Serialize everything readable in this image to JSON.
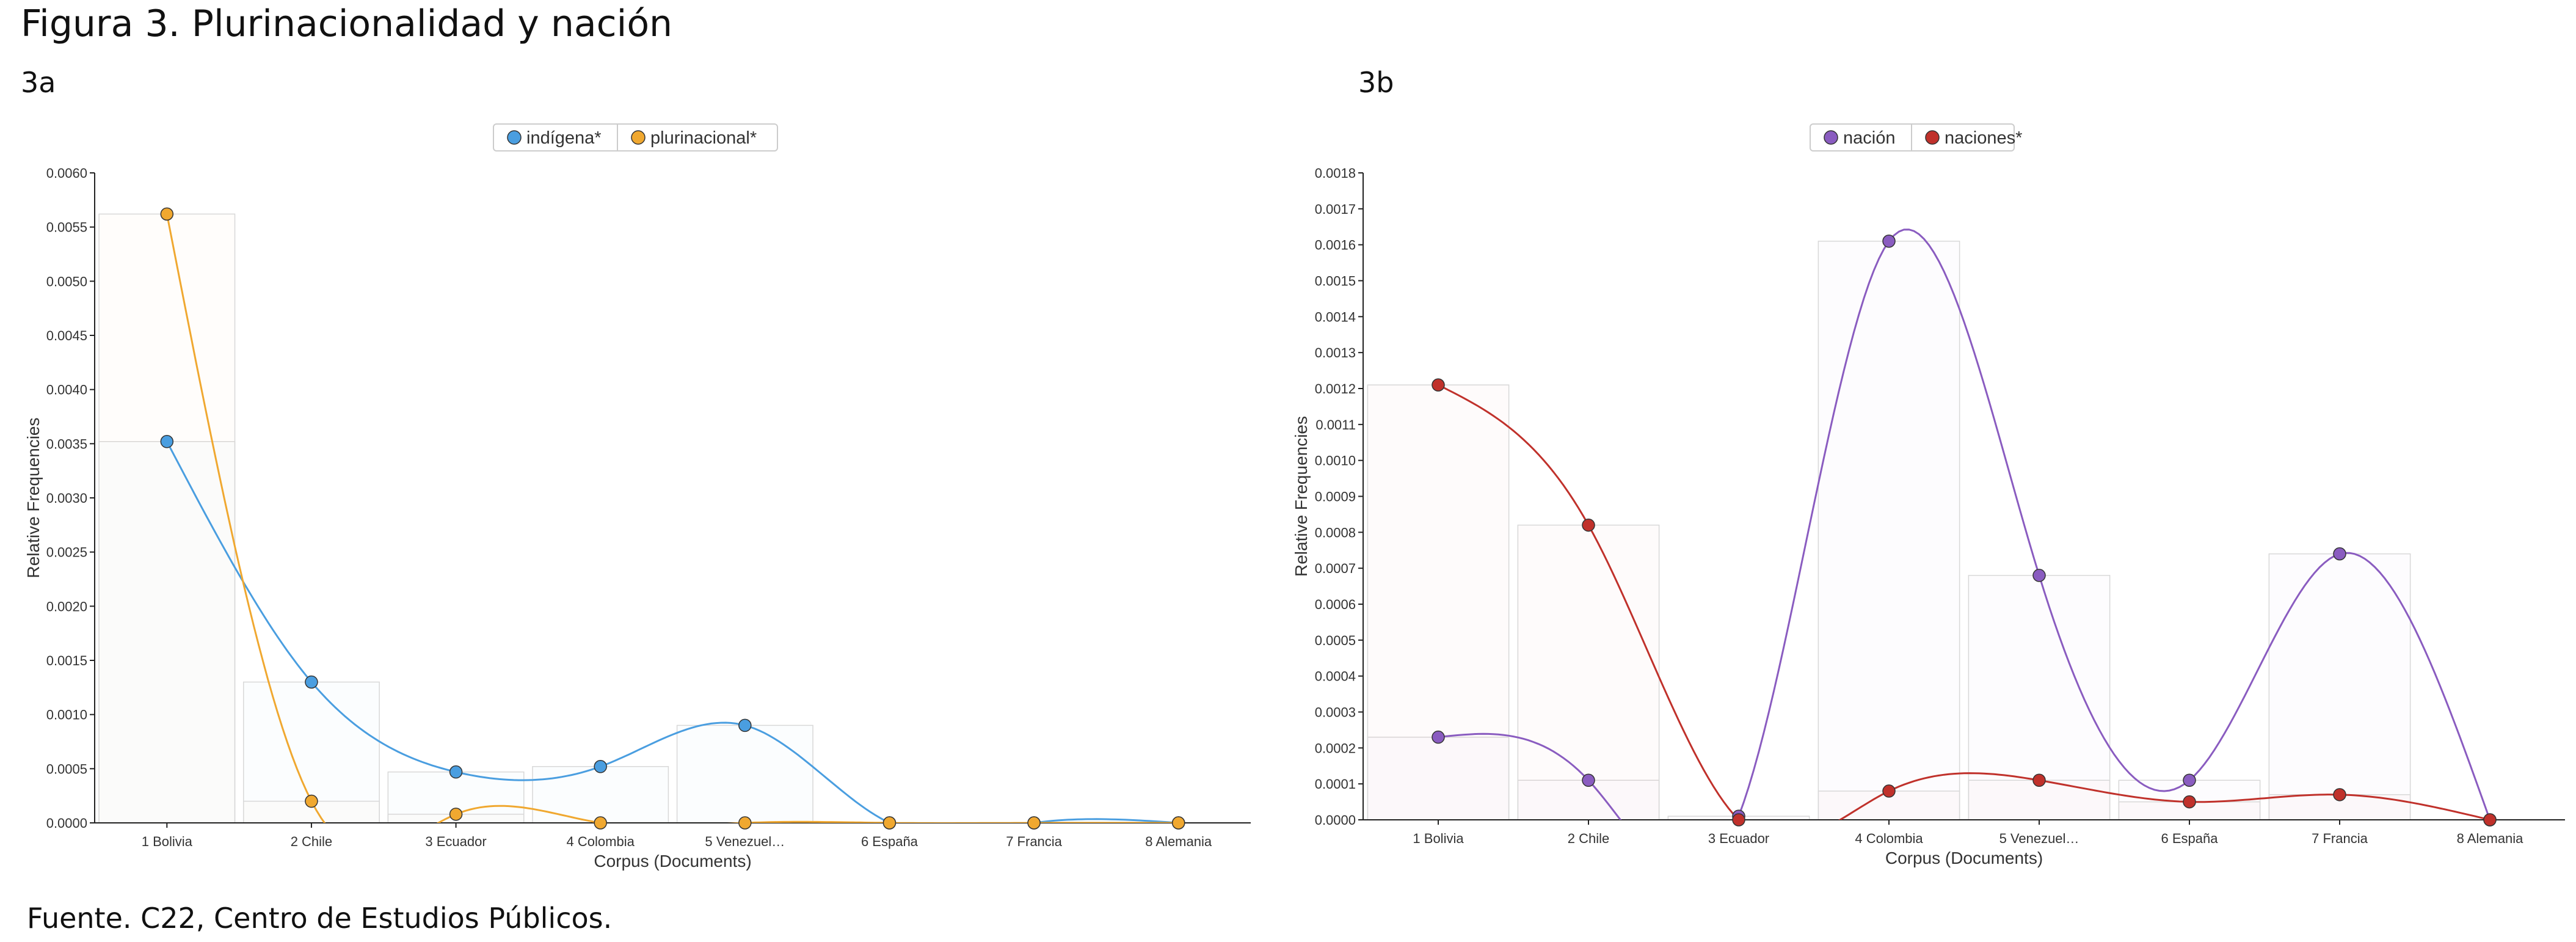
{
  "figure_title": "Figura 3. Plurinacionalidad y nación",
  "source": "Fuente. C22, Centro de Estudios Públicos.",
  "chart_data": [
    {
      "panel": "3a",
      "type": "line",
      "xlabel": "Corpus (Documents)",
      "ylabel": "Relative Frequencies",
      "categories": [
        "1 Bolivia",
        "2 Chile",
        "3 Ecuador",
        "4 Colombia",
        "5 Venezuel…",
        "6 España",
        "7 Francia",
        "8 Alemania"
      ],
      "ylim": [
        0,
        0.006
      ],
      "yticks": [
        "0.0000",
        "0.0005",
        "0.0010",
        "0.0015",
        "0.0020",
        "0.0025",
        "0.0030",
        "0.0035",
        "0.0040",
        "0.0045",
        "0.0050",
        "0.0055",
        "0.0060"
      ],
      "legend_position": "top-center",
      "series": [
        {
          "name": "indígena*",
          "color": "#4a9ee0",
          "values": [
            0.00352,
            0.0013,
            0.00047,
            0.00052,
            0.0009,
            0.0,
            0.0,
            0.0
          ]
        },
        {
          "name": "plurinacional*",
          "color": "#f0a830",
          "values": [
            0.00562,
            0.0002,
            8e-05,
            0.0,
            0.0,
            0.0,
            0.0,
            0.0
          ]
        }
      ]
    },
    {
      "panel": "3b",
      "type": "line",
      "xlabel": "Corpus (Documents)",
      "ylabel": "Relative Frequencies",
      "categories": [
        "1 Bolivia",
        "2 Chile",
        "3 Ecuador",
        "4 Colombia",
        "5 Venezuel…",
        "6 España",
        "7 Francia",
        "8 Alemania"
      ],
      "ylim": [
        0,
        0.0018
      ],
      "yticks": [
        "0.0000",
        "0.0001",
        "0.0002",
        "0.0003",
        "0.0004",
        "0.0005",
        "0.0006",
        "0.0007",
        "0.0008",
        "0.0009",
        "0.0010",
        "0.0011",
        "0.0012",
        "0.0013",
        "0.0014",
        "0.0015",
        "0.0016",
        "0.0017",
        "0.0018"
      ],
      "legend_position": "top-center",
      "series": [
        {
          "name": "nación",
          "color": "#8a5cc0",
          "values": [
            0.00023,
            0.00011,
            1e-05,
            0.00161,
            0.00068,
            0.00011,
            0.00074,
            0.0
          ]
        },
        {
          "name": "naciones*",
          "color": "#c0312b",
          "values": [
            0.00121,
            0.00082,
            0.0,
            8e-05,
            0.00011,
            5e-05,
            7e-05,
            0.0
          ]
        }
      ]
    }
  ]
}
